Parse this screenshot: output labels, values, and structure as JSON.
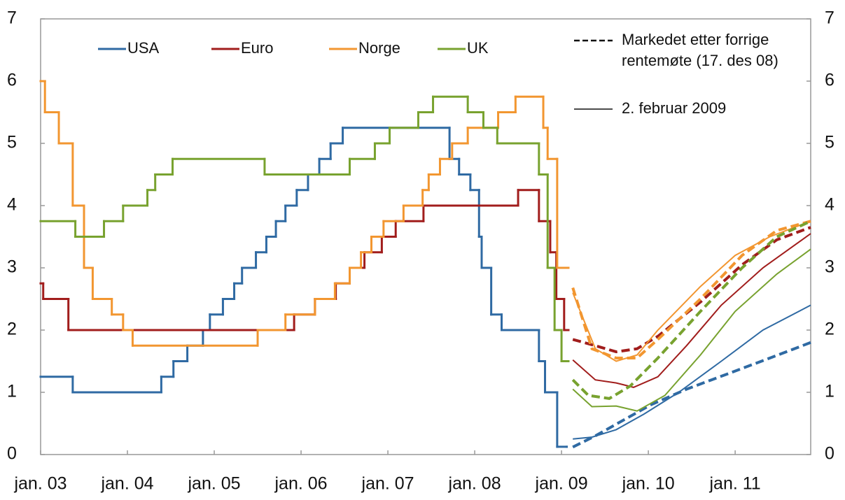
{
  "chart_data": {
    "type": "line",
    "step": true,
    "xlim": [
      2003,
      2011.87
    ],
    "ylim": [
      0,
      7
    ],
    "yticks": [
      0,
      1,
      2,
      3,
      4,
      5,
      6,
      7
    ],
    "y2lim": [
      0,
      7
    ],
    "y2ticks": [
      0,
      1,
      2,
      3,
      4,
      5,
      6,
      7
    ],
    "xticks": [
      {
        "value": 2003,
        "label": "jan. 03"
      },
      {
        "value": 2004,
        "label": "jan. 04"
      },
      {
        "value": 2005,
        "label": "jan. 05"
      },
      {
        "value": 2006,
        "label": "jan. 06"
      },
      {
        "value": 2007,
        "label": "jan. 07"
      },
      {
        "value": 2008,
        "label": "jan. 08"
      },
      {
        "value": 2009,
        "label": "jan. 09"
      },
      {
        "value": 2010,
        "label": "jan. 10"
      },
      {
        "value": 2011,
        "label": "jan. 11"
      }
    ],
    "line_styles": [
      {
        "style": "dashed",
        "label": [
          "Markedet etter forrige",
          "rentemøte (17. des 08)"
        ]
      },
      {
        "style": "solid",
        "label": [
          "2. februar 2009"
        ]
      }
    ],
    "series": [
      {
        "name": "USA",
        "color": "#2f6aa3",
        "x": [
          2003.0,
          2003.37,
          2004.39,
          2004.53,
          2004.69,
          2004.87,
          2004.95,
          2005.1,
          2005.23,
          2005.32,
          2005.48,
          2005.6,
          2005.71,
          2005.82,
          2005.95,
          2006.08,
          2006.21,
          2006.34,
          2006.48,
          2007.71,
          2007.82,
          2007.95,
          2008.05,
          2008.08,
          2008.19,
          2008.31,
          2008.74,
          2008.81,
          2008.95,
          2009.06
        ],
        "values": [
          1.25,
          1.0,
          1.25,
          1.5,
          1.75,
          2.0,
          2.25,
          2.5,
          2.75,
          3.0,
          3.25,
          3.5,
          3.75,
          4.0,
          4.25,
          4.5,
          4.75,
          5.0,
          5.25,
          4.75,
          4.5,
          4.25,
          3.5,
          3.0,
          2.25,
          2.0,
          1.5,
          1.0,
          0.125,
          0.125
        ],
        "forecasts": [
          {
            "style": "dashed",
            "x": [
              2009.13,
              2009.39,
              2009.71,
              2010.03,
              2010.44,
              2010.92,
              2011.4,
              2011.87
            ],
            "values": [
              0.12,
              0.3,
              0.55,
              0.8,
              1.05,
              1.3,
              1.55,
              1.8
            ]
          },
          {
            "style": "solid",
            "x": [
              2009.13,
              2009.35,
              2009.63,
              2009.95,
              2010.35,
              2010.84,
              2011.32,
              2011.87
            ],
            "values": [
              0.25,
              0.28,
              0.4,
              0.65,
              1.0,
              1.5,
              2.0,
              2.4
            ]
          }
        ]
      },
      {
        "name": "Euro",
        "color": "#a11d1c",
        "x": [
          2003.0,
          2003.03,
          2003.32,
          2005.92,
          2006.16,
          2006.4,
          2006.56,
          2006.73,
          2006.93,
          2007.09,
          2007.41,
          2008.5,
          2008.74,
          2008.87,
          2008.94,
          2009.03,
          2009.08
        ],
        "values": [
          2.75,
          2.5,
          2.0,
          2.25,
          2.5,
          2.75,
          3.0,
          3.25,
          3.5,
          3.75,
          4.0,
          4.25,
          3.75,
          3.25,
          2.5,
          2.0,
          2.0
        ],
        "forecasts": [
          {
            "style": "dashed",
            "x": [
              2009.13,
              2009.39,
              2009.63,
              2009.87,
              2010.11,
              2010.6,
              2011.08,
              2011.48,
              2011.87
            ],
            "values": [
              1.85,
              1.75,
              1.65,
              1.7,
              1.9,
              2.45,
              3.05,
              3.45,
              3.65
            ]
          },
          {
            "style": "solid",
            "x": [
              2009.13,
              2009.39,
              2009.63,
              2009.83,
              2010.11,
              2010.44,
              2010.84,
              2011.32,
              2011.87
            ],
            "values": [
              1.52,
              1.2,
              1.15,
              1.08,
              1.25,
              1.75,
              2.4,
              3.0,
              3.55
            ]
          }
        ]
      },
      {
        "name": "Norge",
        "color": "#f29630",
        "x": [
          2003.0,
          2003.05,
          2003.21,
          2003.37,
          2003.5,
          2003.6,
          2003.82,
          2003.95,
          2004.06,
          2005.5,
          2005.82,
          2006.16,
          2006.39,
          2006.56,
          2006.69,
          2006.81,
          2006.95,
          2007.18,
          2007.4,
          2007.47,
          2007.6,
          2007.74,
          2007.92,
          2008.27,
          2008.47,
          2008.79,
          2008.84,
          2008.95,
          2009.08
        ],
        "values": [
          6.0,
          5.5,
          5.0,
          4.0,
          3.0,
          2.5,
          2.25,
          2.0,
          1.75,
          2.0,
          2.25,
          2.5,
          2.75,
          3.0,
          3.25,
          3.5,
          3.75,
          4.0,
          4.25,
          4.5,
          4.75,
          5.0,
          5.25,
          5.5,
          5.75,
          5.25,
          4.75,
          3.0,
          3.0
        ],
        "forecasts": [
          {
            "style": "dashed",
            "x": [
              2009.13,
              2009.35,
              2009.63,
              2009.87,
              2010.11,
              2010.6,
              2011.08,
              2011.48,
              2011.87
            ],
            "values": [
              2.68,
              1.7,
              1.55,
              1.55,
              1.85,
              2.5,
              3.2,
              3.6,
              3.75
            ]
          },
          {
            "style": "solid",
            "x": [
              2009.13,
              2009.39,
              2009.63,
              2009.87,
              2010.11,
              2010.6,
              2011.0,
              2011.4,
              2011.87
            ],
            "values": [
              2.6,
              1.7,
              1.5,
              1.6,
              2.0,
              2.7,
              3.2,
              3.5,
              3.75
            ]
          }
        ]
      },
      {
        "name": "UK",
        "color": "#78a22f",
        "x": [
          2003.0,
          2003.4,
          2003.73,
          2003.95,
          2004.23,
          2004.32,
          2004.52,
          2005.58,
          2006.56,
          2006.85,
          2007.02,
          2007.35,
          2007.52,
          2007.92,
          2008.1,
          2008.26,
          2008.74,
          2008.84,
          2008.92,
          2009.0,
          2009.08
        ],
        "values": [
          3.75,
          3.5,
          3.75,
          4.0,
          4.25,
          4.5,
          4.75,
          4.5,
          4.75,
          5.0,
          5.25,
          5.5,
          5.75,
          5.5,
          5.25,
          5.0,
          4.5,
          3.0,
          2.0,
          1.5,
          1.5
        ],
        "forecasts": [
          {
            "style": "dashed",
            "x": [
              2009.13,
              2009.31,
              2009.55,
              2009.79,
              2010.11,
              2010.6,
              2011.08,
              2011.48,
              2011.87
            ],
            "values": [
              1.2,
              0.95,
              0.9,
              1.1,
              1.55,
              2.3,
              3.0,
              3.5,
              3.75
            ]
          },
          {
            "style": "solid",
            "x": [
              2009.13,
              2009.35,
              2009.63,
              2009.87,
              2010.19,
              2010.6,
              2011.0,
              2011.48,
              2011.87
            ],
            "values": [
              1.05,
              0.77,
              0.78,
              0.7,
              0.95,
              1.6,
              2.3,
              2.9,
              3.3
            ]
          }
        ]
      }
    ]
  }
}
